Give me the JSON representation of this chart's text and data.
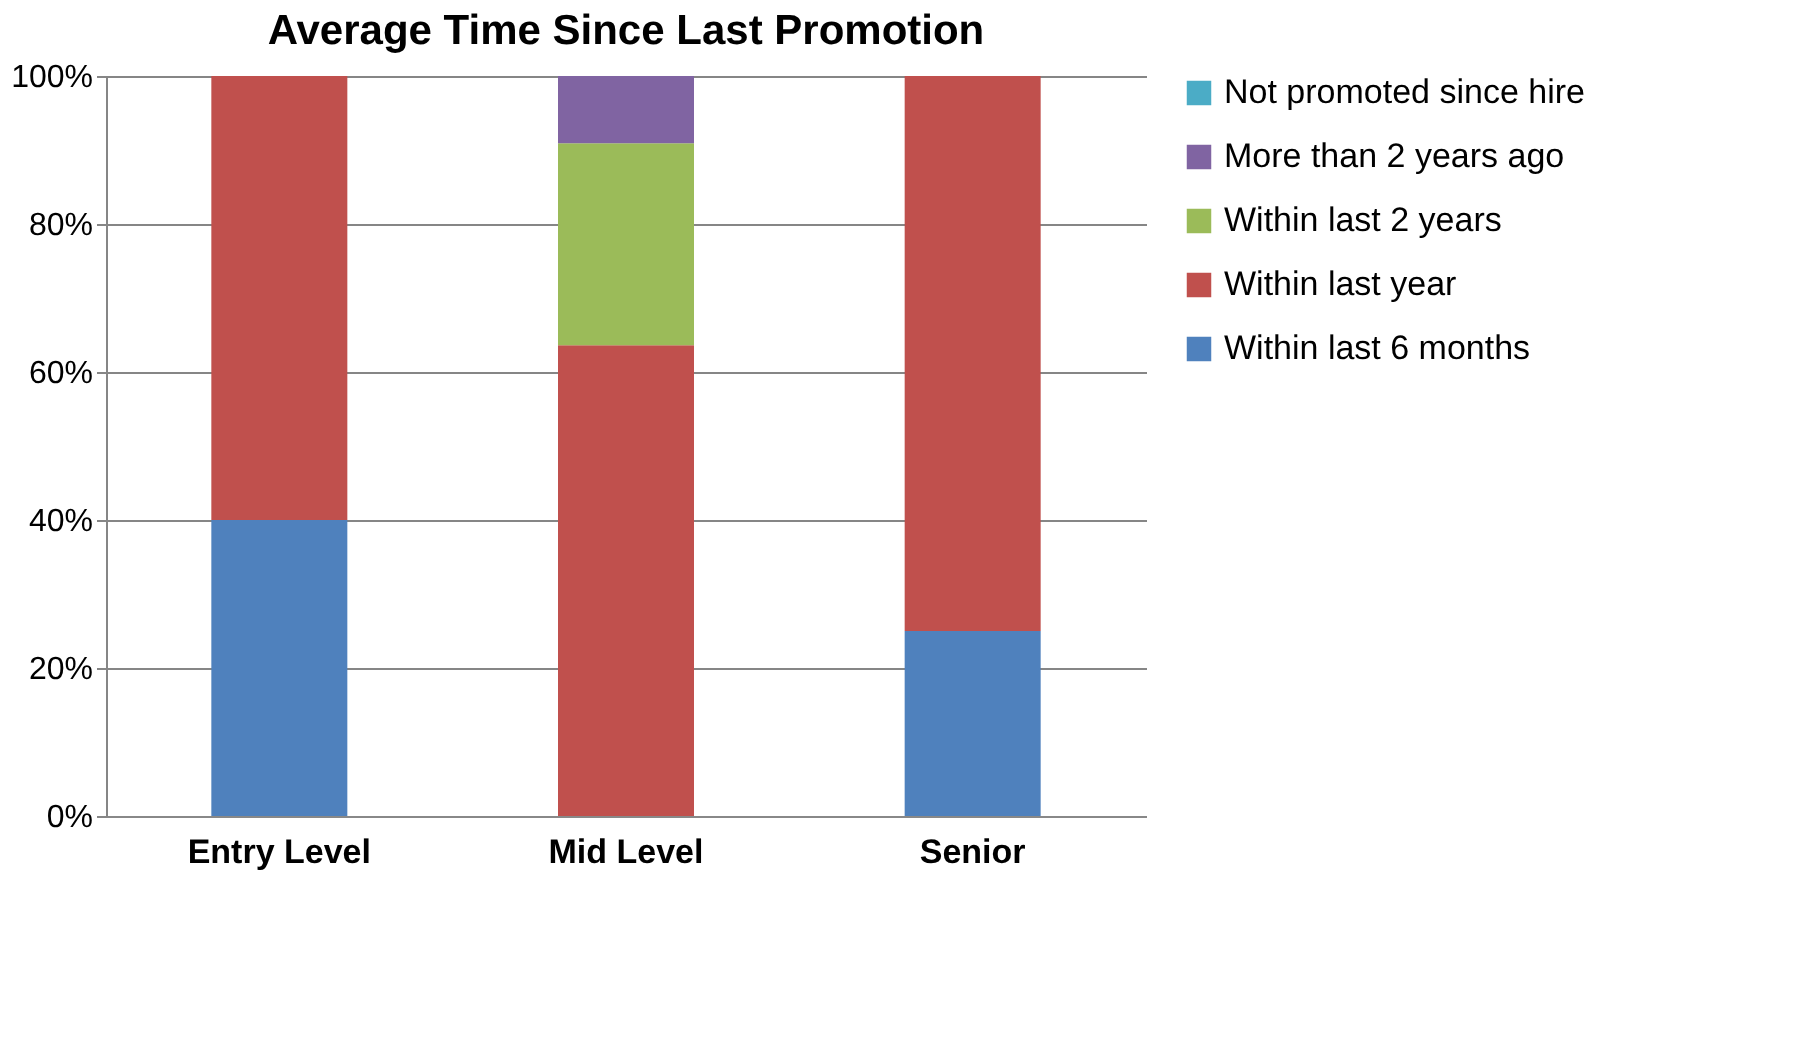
{
  "chart_data": {
    "type": "bar",
    "title": "Average Time Since Last Promotion",
    "stacked": true,
    "categories": [
      "Entry Level",
      "Mid Level",
      "Senior"
    ],
    "series": [
      {
        "name": "Within last 6 months",
        "color": "#4f81bd",
        "values": [
          40,
          0,
          25
        ]
      },
      {
        "name": "Within last year",
        "color": "#c0504d",
        "values": [
          60,
          63.6,
          75
        ]
      },
      {
        "name": "Within last 2 years",
        "color": "#9bbb59",
        "values": [
          0,
          27.3,
          0
        ]
      },
      {
        "name": "More than 2 years ago",
        "color": "#8064a2",
        "values": [
          0,
          9.1,
          0
        ]
      },
      {
        "name": "Not promoted since hire",
        "color": "#4bacc6",
        "values": [
          0,
          0,
          0
        ]
      }
    ],
    "ylim": [
      0,
      100
    ],
    "yticks": [
      {
        "value": 0,
        "label": "0%"
      },
      {
        "value": 20,
        "label": "20%"
      },
      {
        "value": 40,
        "label": "40%"
      },
      {
        "value": 60,
        "label": "60%"
      },
      {
        "value": 80,
        "label": "80%"
      },
      {
        "value": 100,
        "label": "100%"
      }
    ],
    "grid": "y",
    "legend": "right"
  }
}
